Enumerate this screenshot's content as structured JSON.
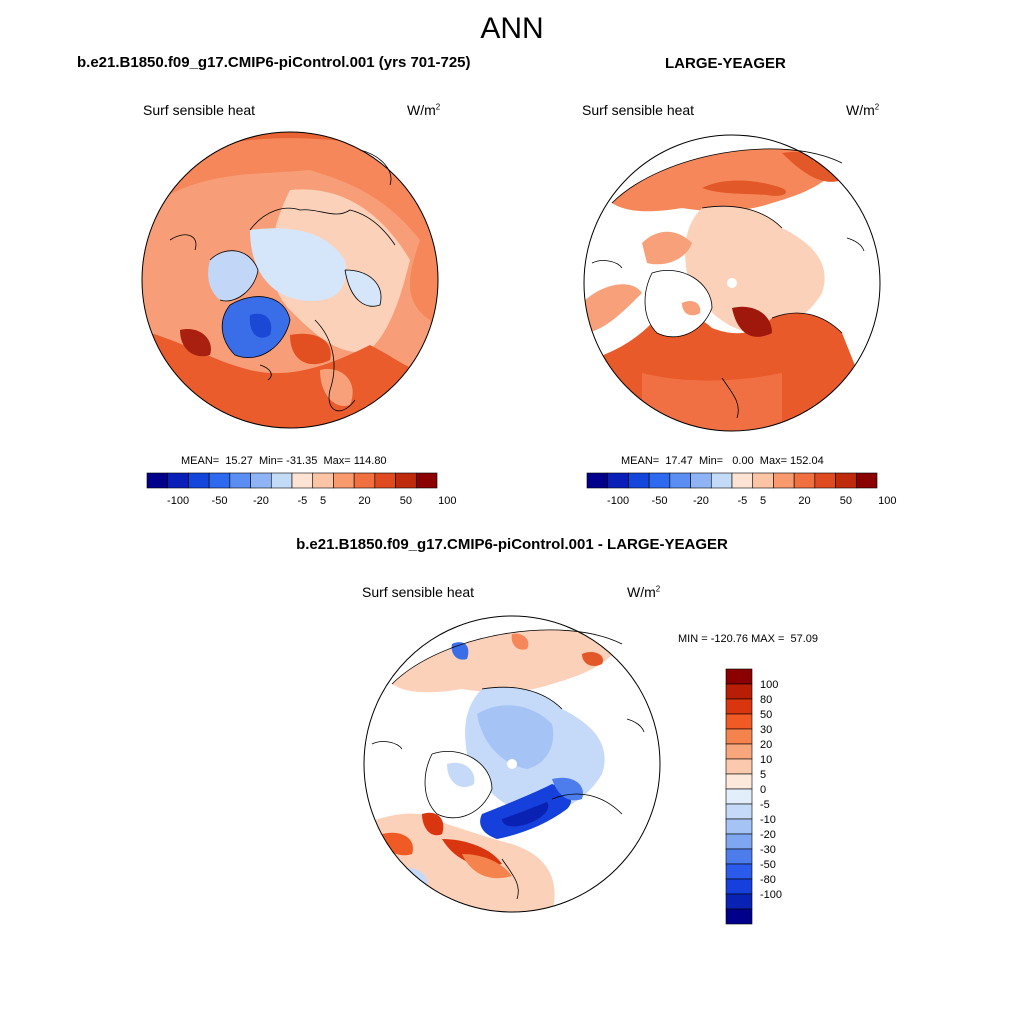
{
  "figure": {
    "season": "ANN",
    "units_base": "W/m",
    "units_exp": "2"
  },
  "panels": [
    {
      "title": "b.e21.B1850.f09_g17.CMIP6-piControl.001 (yrs 701-725)",
      "variable": "Surf sensible heat",
      "stats": "MEAN=  15.27  Min= -31.35  Max= 114.80"
    },
    {
      "title": "LARGE-YEAGER",
      "variable": "Surf sensible heat",
      "stats": "MEAN=  17.47  Min=   0.00  Max= 152.04"
    },
    {
      "title": "b.e21.B1850.f09_g17.CMIP6-piControl.001 - LARGE-YEAGER",
      "variable": "Surf sensible heat",
      "stats": "MIN = -120.76 MAX =  57.09"
    }
  ],
  "colorbar_abs": {
    "colors": [
      "#00008b",
      "#0a1fb8",
      "#1446dc",
      "#2e6af0",
      "#5a8ef2",
      "#8eb4f5",
      "#c4dbf8",
      "#fde3d3",
      "#fbc4a5",
      "#f89a6e",
      "#f1703f",
      "#e04a20",
      "#c02a0c",
      "#8b0000"
    ],
    "tick_labels": [
      "-100",
      "-50",
      "-20",
      "-5",
      "5",
      "20",
      "50",
      "100"
    ]
  },
  "colorbar_diff": {
    "colors": [
      "#8b0000",
      "#b81e05",
      "#d9360f",
      "#f05a25",
      "#f5834e",
      "#f8a77c",
      "#fbcaae",
      "#fde8dc",
      "#e3eefb",
      "#c5d9f8",
      "#a6c3f5",
      "#7ea6f1",
      "#4d7ded",
      "#2b5bea",
      "#1640db",
      "#0a22b4",
      "#00008b"
    ],
    "tick_labels": [
      "100",
      "80",
      "50",
      "30",
      "20",
      "10",
      "5",
      "0",
      "-5",
      "-10",
      "-20",
      "-30",
      "-50",
      "-80",
      "-100"
    ]
  }
}
